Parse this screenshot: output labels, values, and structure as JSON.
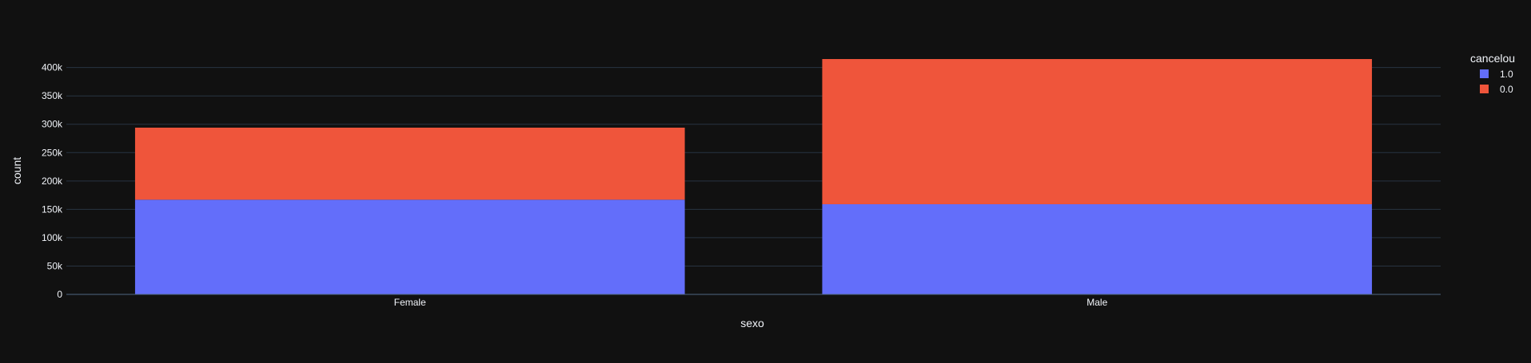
{
  "chart_data": {
    "type": "bar",
    "barmode": "stack",
    "categories": [
      "Female",
      "Male"
    ],
    "series": [
      {
        "name": "1.0",
        "values": [
          167000,
          159000
        ],
        "color": "#636efa"
      },
      {
        "name": "0.0",
        "values": [
          127000,
          256000
        ],
        "color": "#ef553b"
      }
    ],
    "xlabel": "sexo",
    "ylabel": "count",
    "ylim": [
      0,
      415000
    ],
    "yticks": [
      0,
      50000,
      100000,
      150000,
      200000,
      250000,
      300000,
      350000,
      400000
    ],
    "ytick_labels": [
      "0",
      "50k",
      "100k",
      "150k",
      "200k",
      "250k",
      "300k",
      "350k",
      "400k"
    ],
    "legend_title": "cancelou",
    "legend_position": "top-right",
    "grid": true,
    "theme": {
      "background": "#111111",
      "grid": "#283442",
      "text": "#f2f5fa",
      "axis_line": "#506784"
    }
  }
}
